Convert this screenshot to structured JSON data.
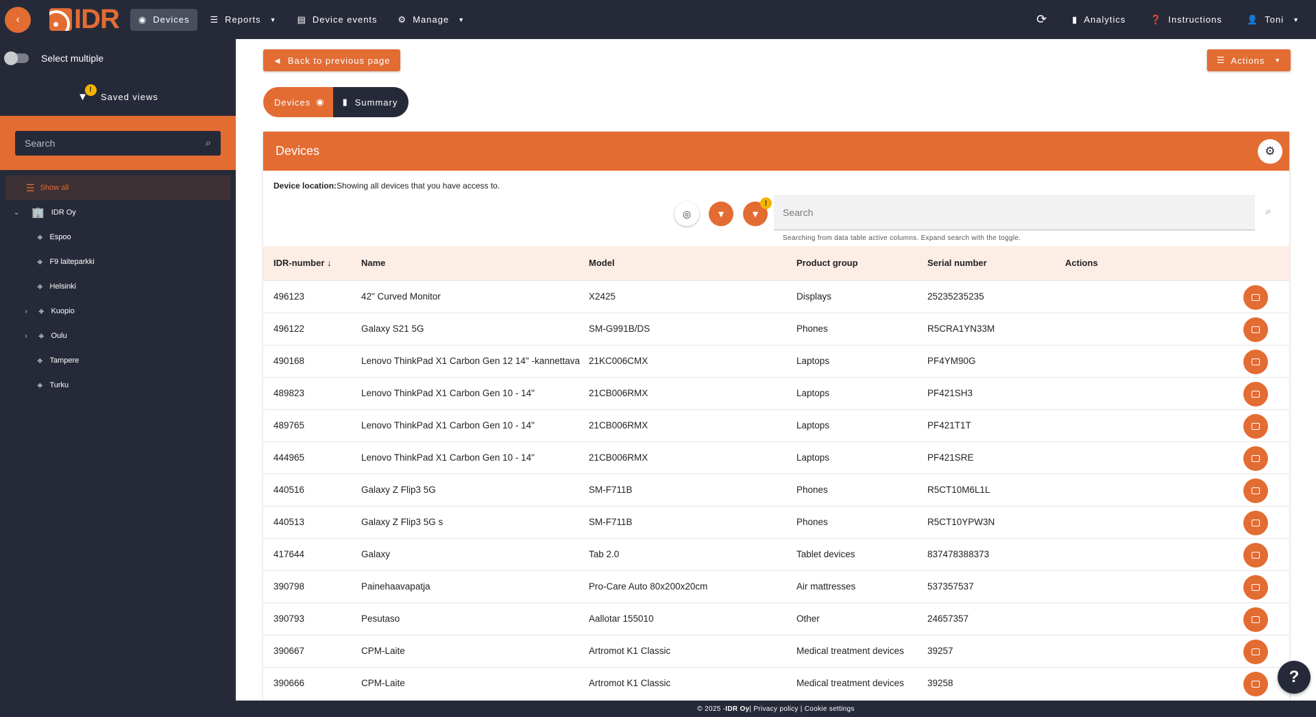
{
  "topbar": {
    "logo_text": "IDR",
    "nav": [
      {
        "label": "Devices",
        "icon": "eye-icon"
      },
      {
        "label": "Reports",
        "icon": "list-icon"
      },
      {
        "label": "Device events",
        "icon": "table-icon"
      },
      {
        "label": "Manage",
        "icon": "gear-icon"
      }
    ],
    "right": [
      {
        "label": "",
        "icon": "refresh-icon"
      },
      {
        "label": "Analytics",
        "icon": "bar-chart-icon"
      },
      {
        "label": "Instructions",
        "icon": "help-circle-icon"
      },
      {
        "label": "Toni",
        "icon": "user-icon"
      }
    ]
  },
  "sidebar": {
    "select_multiple": "Select multiple",
    "saved_views": "Saved views",
    "saved_views_badge": "!",
    "search_placeholder": "Search",
    "show_all": "Show all",
    "root": "IDR Oy",
    "locations": [
      {
        "label": "Espoo",
        "expandable": false
      },
      {
        "label": "F9 laiteparkki",
        "expandable": false
      },
      {
        "label": "Helsinki",
        "expandable": false
      },
      {
        "label": "Kuopio",
        "expandable": true
      },
      {
        "label": "Oulu",
        "expandable": true
      },
      {
        "label": "Tampere",
        "expandable": false
      },
      {
        "label": "Turku",
        "expandable": false
      }
    ]
  },
  "main": {
    "back_button": "Back to previous page",
    "actions_button": "Actions",
    "segments": {
      "devices": "Devices",
      "summary": "Summary"
    },
    "card_title": "Devices",
    "location_label": "Device location:",
    "location_text": "Showing all devices that you have access to.",
    "filter_badge": "!",
    "search_placeholder": "Search",
    "search_hint": "Searching from data table active columns. Expand search with the toggle.",
    "columns": [
      "IDR-number",
      "Name",
      "Model",
      "Product group",
      "Serial number",
      "Actions"
    ],
    "sort_indicator": "↓",
    "rows": [
      [
        "496123",
        "42\" Curved Monitor",
        "X2425",
        "Displays",
        "25235235235"
      ],
      [
        "496122",
        "Galaxy S21 5G",
        "SM-G991B/DS",
        "Phones",
        "R5CRA1YN33M"
      ],
      [
        "490168",
        "Lenovo ThinkPad X1 Carbon Gen 12 14\" -kannettava",
        "21KC006CMX",
        "Laptops",
        "PF4YM90G"
      ],
      [
        "489823",
        "Lenovo ThinkPad X1 Carbon Gen 10 - 14\"",
        "21CB006RMX",
        "Laptops",
        "PF421SH3"
      ],
      [
        "489765",
        "Lenovo ThinkPad X1 Carbon Gen 10 - 14\"",
        "21CB006RMX",
        "Laptops",
        "PF421T1T"
      ],
      [
        "444965",
        "Lenovo ThinkPad X1 Carbon Gen 10 - 14\"",
        "21CB006RMX",
        "Laptops",
        "PF421SRE"
      ],
      [
        "440516",
        "Galaxy Z Flip3 5G",
        "SM-F711B",
        "Phones",
        "R5CT10M6L1L"
      ],
      [
        "440513",
        "Galaxy Z Flip3 5G s",
        "SM-F711B",
        "Phones",
        "R5CT10YPW3N"
      ],
      [
        "417644",
        "Galaxy",
        "Tab 2.0",
        "Tablet devices",
        "837478388373"
      ],
      [
        "390798",
        "Painehaavapatja",
        "Pro-Care Auto 80x200x20cm",
        "Air mattresses",
        "537357537"
      ],
      [
        "390793",
        "Pesutaso",
        "Aallotar 155010",
        "Other",
        "24657357"
      ],
      [
        "390667",
        "CPM-Laite",
        "Artromot K1 Classic",
        "Medical treatment devices",
        "39257"
      ],
      [
        "390666",
        "CPM-Laite",
        "Artromot K1 Classic",
        "Medical treatment devices",
        "39258"
      ]
    ]
  },
  "footer": {
    "pre": "© 2025 - ",
    "company": "IDR Oy",
    "links": " | Privacy policy | Cookie settings"
  },
  "help_fab": "?",
  "colors": {
    "accent": "#e36c33",
    "dark": "#262a38",
    "header_row": "#fcede5"
  }
}
